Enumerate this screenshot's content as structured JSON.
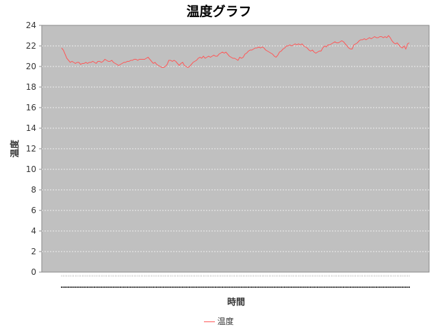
{
  "chart_data": {
    "type": "line",
    "title": "温度グラフ",
    "xlabel": "時間",
    "ylabel": "温度",
    "ylim": [
      0,
      24
    ],
    "yticks": [
      0,
      2,
      4,
      6,
      8,
      10,
      12,
      14,
      16,
      18,
      20,
      22,
      24
    ],
    "grid": true,
    "legend_position": "bottom",
    "background_color": "#c0c0c0",
    "series": [
      {
        "name": "温度",
        "color": "#ff5555",
        "values": [
          21.8,
          21.6,
          21.2,
          20.8,
          20.6,
          20.4,
          20.5,
          20.4,
          20.3,
          20.4,
          20.4,
          20.2,
          20.3,
          20.3,
          20.4,
          20.3,
          20.4,
          20.4,
          20.5,
          20.4,
          20.3,
          20.5,
          20.5,
          20.4,
          20.5,
          20.7,
          20.6,
          20.5,
          20.5,
          20.6,
          20.4,
          20.3,
          20.2,
          20.1,
          20.2,
          20.3,
          20.4,
          20.4,
          20.5,
          20.5,
          20.6,
          20.6,
          20.7,
          20.7,
          20.6,
          20.7,
          20.7,
          20.7,
          20.7,
          20.8,
          20.9,
          20.7,
          20.5,
          20.3,
          20.4,
          20.2,
          20.1,
          20.0,
          19.9,
          19.9,
          20.0,
          20.2,
          20.6,
          20.6,
          20.5,
          20.6,
          20.5,
          20.3,
          20.1,
          20.3,
          20.4,
          20.1,
          20.0,
          19.9,
          20.0,
          20.2,
          20.4,
          20.5,
          20.6,
          20.8,
          20.9,
          20.8,
          21.0,
          20.8,
          20.9,
          21.0,
          20.9,
          21.0,
          21.1,
          21.0,
          21.0,
          21.2,
          21.3,
          21.4,
          21.3,
          21.4,
          21.2,
          21.0,
          20.9,
          20.8,
          20.8,
          20.7,
          20.6,
          20.9,
          20.8,
          20.9,
          21.2,
          21.3,
          21.5,
          21.6,
          21.6,
          21.7,
          21.8,
          21.8,
          21.9,
          21.8,
          21.9,
          21.8,
          21.6,
          21.5,
          21.4,
          21.3,
          21.2,
          21.0,
          20.9,
          21.1,
          21.4,
          21.5,
          21.7,
          21.8,
          22.0,
          22.0,
          22.1,
          22.0,
          22.1,
          22.2,
          22.1,
          22.2,
          22.1,
          22.2,
          22.0,
          21.9,
          21.8,
          21.6,
          21.5,
          21.6,
          21.4,
          21.3,
          21.4,
          21.5,
          21.5,
          21.8,
          22.0,
          21.9,
          22.1,
          22.1,
          22.2,
          22.3,
          22.4,
          22.3,
          22.3,
          22.4,
          22.5,
          22.4,
          22.2,
          22.0,
          21.8,
          21.7,
          21.7,
          22.1,
          22.2,
          22.3,
          22.5,
          22.6,
          22.6,
          22.7,
          22.6,
          22.7,
          22.8,
          22.7,
          22.8,
          22.9,
          22.8,
          22.8,
          22.9,
          22.9,
          22.8,
          22.9,
          22.8,
          23.0,
          22.8,
          22.5,
          22.3,
          22.2,
          22.3,
          22.1,
          21.9,
          21.8,
          22.0,
          21.7,
          22.2,
          22.3
        ]
      }
    ]
  },
  "legend": {
    "label": "温度"
  }
}
